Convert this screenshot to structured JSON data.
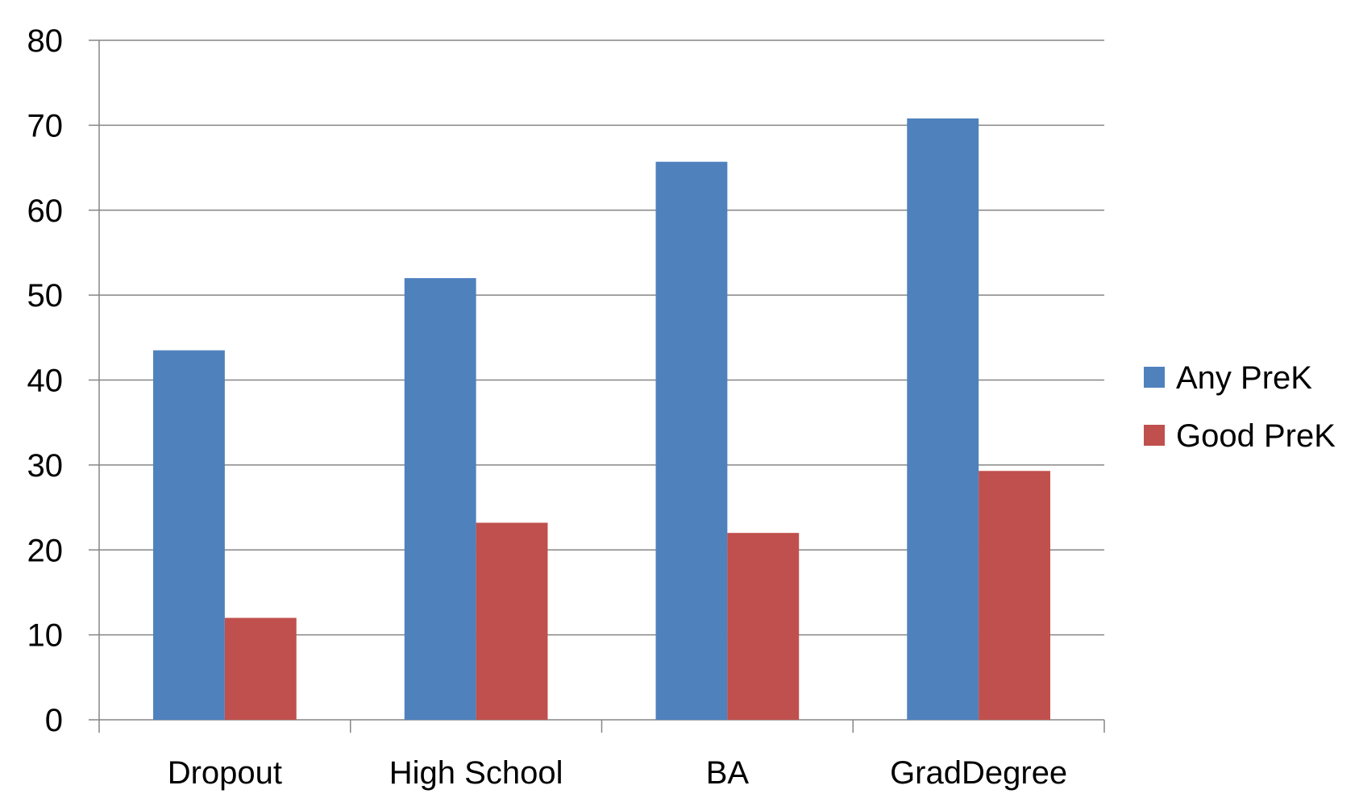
{
  "chart_data": {
    "type": "bar",
    "categories": [
      "Dropout",
      "High School",
      "BA",
      "GradDegree"
    ],
    "series": [
      {
        "name": "Any PreK",
        "values": [
          43.5,
          52,
          65.7,
          70.8
        ],
        "color": "#4f81bd"
      },
      {
        "name": "Good PreK",
        "values": [
          12,
          23.2,
          22,
          29.3
        ],
        "color": "#c0504d"
      }
    ],
    "yticks": [
      "0",
      "10",
      "20",
      "30",
      "40",
      "50",
      "60",
      "70",
      "80"
    ],
    "ylim": [
      0,
      80
    ],
    "grid": true,
    "legend": "right",
    "title": "",
    "xlabel": "",
    "ylabel": ""
  }
}
